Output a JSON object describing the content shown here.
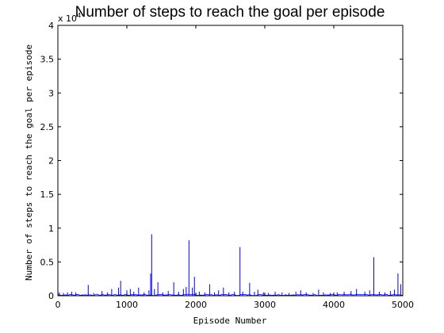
{
  "chart_data": {
    "type": "line",
    "title": "Number of steps to reach the goal per episode",
    "xlabel": "Episode Number",
    "ylabel": "Number of steps to reach the goal per episode",
    "y_multiplier": "x 10",
    "y_multiplier_exponent": "4",
    "xlim": [
      0,
      5000
    ],
    "ylim": [
      0,
      4
    ],
    "x_ticks": [
      "0",
      "1000",
      "2000",
      "3000",
      "4000",
      "5000"
    ],
    "y_ticks": [
      "0",
      "0.5",
      "1",
      "1.5",
      "2",
      "2.5",
      "3",
      "3.5",
      "4"
    ],
    "grid": false,
    "line_color": "#0000ff",
    "spikes": [
      {
        "x": 20,
        "y": 0.05
      },
      {
        "x": 80,
        "y": 0.04
      },
      {
        "x": 140,
        "y": 0.05
      },
      {
        "x": 200,
        "y": 0.06
      },
      {
        "x": 260,
        "y": 0.05
      },
      {
        "x": 440,
        "y": 0.16
      },
      {
        "x": 520,
        "y": 0.04
      },
      {
        "x": 640,
        "y": 0.07
      },
      {
        "x": 720,
        "y": 0.05
      },
      {
        "x": 780,
        "y": 0.1
      },
      {
        "x": 880,
        "y": 0.12
      },
      {
        "x": 910,
        "y": 0.22
      },
      {
        "x": 1000,
        "y": 0.08
      },
      {
        "x": 1050,
        "y": 0.1
      },
      {
        "x": 1100,
        "y": 0.06
      },
      {
        "x": 1170,
        "y": 0.12
      },
      {
        "x": 1250,
        "y": 0.05
      },
      {
        "x": 1320,
        "y": 0.08
      },
      {
        "x": 1345,
        "y": 0.33
      },
      {
        "x": 1360,
        "y": 0.91
      },
      {
        "x": 1400,
        "y": 0.1
      },
      {
        "x": 1450,
        "y": 0.2
      },
      {
        "x": 1520,
        "y": 0.05
      },
      {
        "x": 1600,
        "y": 0.07
      },
      {
        "x": 1680,
        "y": 0.2
      },
      {
        "x": 1750,
        "y": 0.06
      },
      {
        "x": 1820,
        "y": 0.1
      },
      {
        "x": 1860,
        "y": 0.13
      },
      {
        "x": 1900,
        "y": 0.82
      },
      {
        "x": 1950,
        "y": 0.12
      },
      {
        "x": 1980,
        "y": 0.28
      },
      {
        "x": 2050,
        "y": 0.06
      },
      {
        "x": 2130,
        "y": 0.05
      },
      {
        "x": 2200,
        "y": 0.17
      },
      {
        "x": 2270,
        "y": 0.05
      },
      {
        "x": 2330,
        "y": 0.08
      },
      {
        "x": 2400,
        "y": 0.12
      },
      {
        "x": 2480,
        "y": 0.05
      },
      {
        "x": 2560,
        "y": 0.06
      },
      {
        "x": 2640,
        "y": 0.72
      },
      {
        "x": 2680,
        "y": 0.06
      },
      {
        "x": 2780,
        "y": 0.19
      },
      {
        "x": 2850,
        "y": 0.06
      },
      {
        "x": 2900,
        "y": 0.09
      },
      {
        "x": 2980,
        "y": 0.05
      },
      {
        "x": 3050,
        "y": 0.04
      },
      {
        "x": 3150,
        "y": 0.06
      },
      {
        "x": 3250,
        "y": 0.05
      },
      {
        "x": 3350,
        "y": 0.04
      },
      {
        "x": 3450,
        "y": 0.06
      },
      {
        "x": 3520,
        "y": 0.08
      },
      {
        "x": 3600,
        "y": 0.05
      },
      {
        "x": 3700,
        "y": 0.04
      },
      {
        "x": 3780,
        "y": 0.09
      },
      {
        "x": 3850,
        "y": 0.05
      },
      {
        "x": 3950,
        "y": 0.04
      },
      {
        "x": 4050,
        "y": 0.05
      },
      {
        "x": 4150,
        "y": 0.06
      },
      {
        "x": 4250,
        "y": 0.07
      },
      {
        "x": 4330,
        "y": 0.1
      },
      {
        "x": 4450,
        "y": 0.06
      },
      {
        "x": 4520,
        "y": 0.08
      },
      {
        "x": 4580,
        "y": 0.57
      },
      {
        "x": 4660,
        "y": 0.06
      },
      {
        "x": 4740,
        "y": 0.05
      },
      {
        "x": 4820,
        "y": 0.07
      },
      {
        "x": 4880,
        "y": 0.09
      },
      {
        "x": 4930,
        "y": 0.33
      },
      {
        "x": 4970,
        "y": 0.17
      }
    ]
  }
}
